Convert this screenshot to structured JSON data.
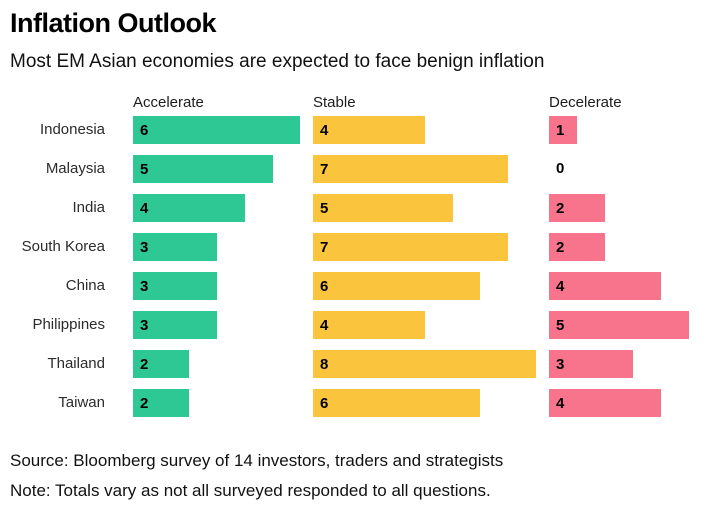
{
  "header": {
    "title": "Inflation Outlook",
    "subtitle": "Most EM Asian economies are expected to face benign inflation"
  },
  "chart_data": {
    "type": "bar",
    "orientation": "horizontal",
    "title": "Inflation Outlook",
    "subtitle": "Most EM Asian economies are expected to face benign inflation",
    "categories": [
      "Indonesia",
      "Malaysia",
      "India",
      "South Korea",
      "China",
      "Philippines",
      "Thailand",
      "Taiwan"
    ],
    "series": [
      {
        "name": "Accelerate",
        "color": "#2ec895",
        "values": [
          6,
          5,
          4,
          3,
          3,
          3,
          2,
          2
        ]
      },
      {
        "name": "Stable",
        "color": "#fac53d",
        "values": [
          4,
          7,
          5,
          7,
          6,
          4,
          8,
          6
        ]
      },
      {
        "name": "Decelerate",
        "color": "#f8738c",
        "values": [
          1,
          0,
          2,
          2,
          4,
          5,
          3,
          4
        ]
      }
    ],
    "value_range": [
      0,
      8
    ],
    "data_labels": "inside-left",
    "legend_position": "top",
    "grid": false
  },
  "footer": {
    "source": "Source: Bloomberg survey of 14 investors, traders and strategists",
    "note": "Note: Totals vary as not all surveyed responded to all questions."
  }
}
